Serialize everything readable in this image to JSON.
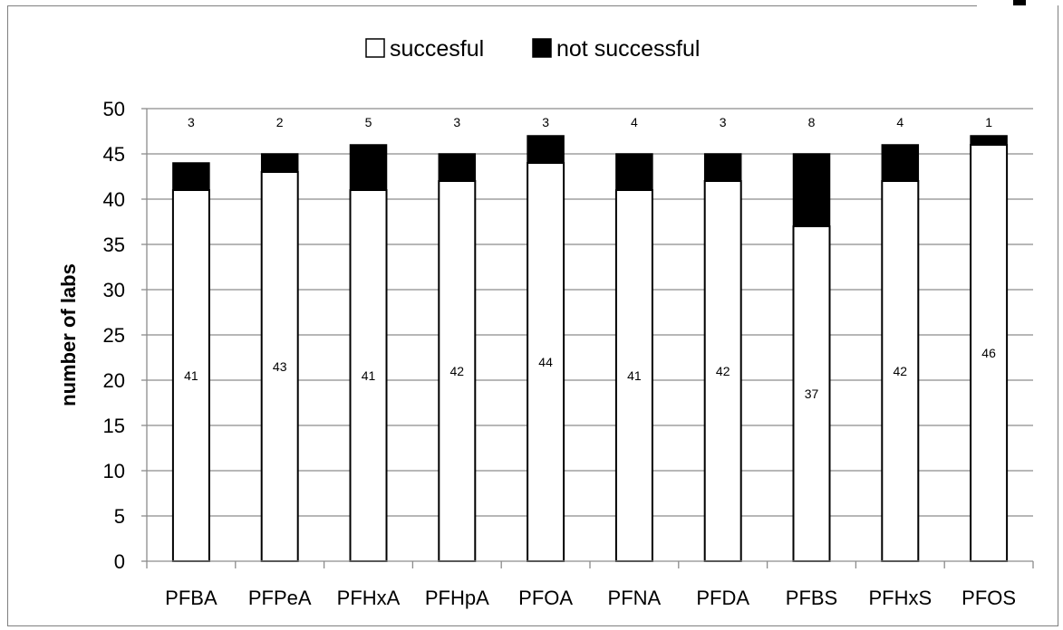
{
  "chart_data": {
    "type": "bar",
    "stacked": true,
    "categories": [
      "PFBA",
      "PFPeA",
      "PFHxA",
      "PFHpA",
      "PFOA",
      "PFNA",
      "PFDA",
      "PFBS",
      "PFHxS",
      "PFOS"
    ],
    "series": [
      {
        "name": "succesful",
        "values": [
          41,
          43,
          41,
          42,
          44,
          41,
          42,
          37,
          42,
          46
        ],
        "color": "#ffffff"
      },
      {
        "name": "not successful",
        "values": [
          3,
          2,
          5,
          3,
          3,
          4,
          3,
          8,
          4,
          1
        ],
        "color": "#000000"
      }
    ],
    "xlabel": "",
    "ylabel": "number of labs",
    "ylim": [
      0,
      50
    ],
    "yticks": [
      "0",
      "5",
      "10",
      "15",
      "20",
      "25",
      "30",
      "35",
      "40",
      "45",
      "50"
    ],
    "grid": true,
    "legend_position": "top"
  }
}
